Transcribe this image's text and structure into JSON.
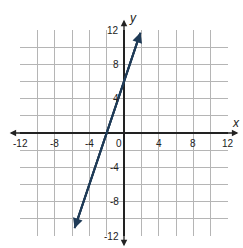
{
  "chart_data": {
    "type": "line",
    "xlabel": "x",
    "ylabel": "y",
    "x": [
      -5.7,
      1.9
    ],
    "values": [
      -11.1,
      11.7
    ],
    "color": "#1f3b57",
    "marker": "arrow",
    "xlim": [
      -12,
      12
    ],
    "ylim": [
      -12,
      12
    ],
    "xticks": [
      -12,
      -8,
      -4,
      0,
      4,
      8,
      12
    ],
    "yticks": [
      -12,
      -8,
      -4,
      4,
      8,
      12
    ],
    "grid": true
  }
}
